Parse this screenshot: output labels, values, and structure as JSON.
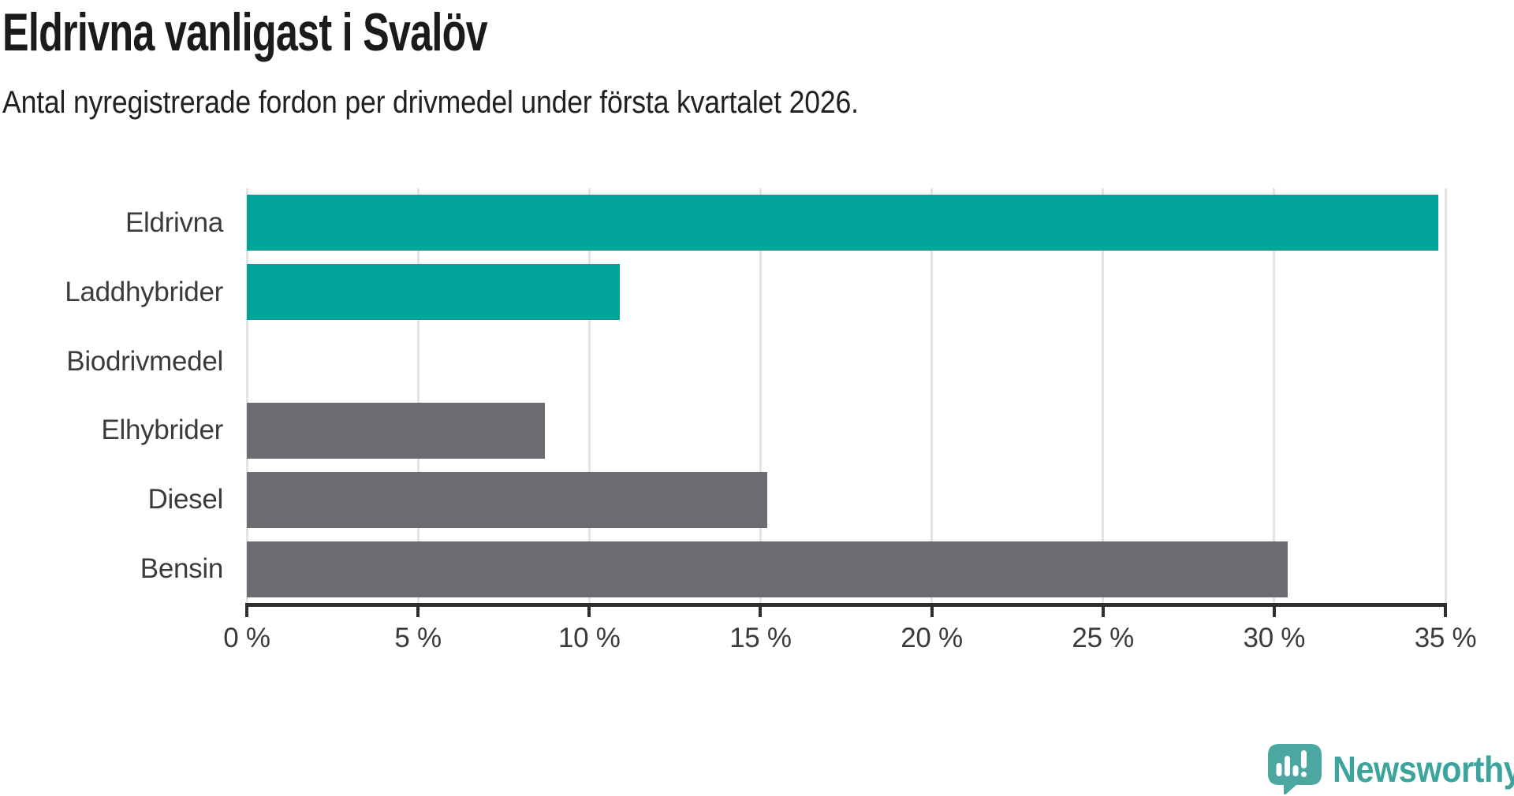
{
  "title": "Eldrivna vanligast i Svalöv",
  "subtitle": "Antal nyregistrerade fordon per drivmedel under första kvartalet 2026.",
  "chart_data": {
    "type": "bar",
    "orientation": "horizontal",
    "title": "Eldrivna vanligast i Svalöv",
    "subtitle": "Antal nyregistrerade fordon per drivmedel under första kvartalet 2026.",
    "categories": [
      "Eldrivna",
      "Laddhybrider",
      "Biodrivmedel",
      "Elhybrider",
      "Diesel",
      "Bensin"
    ],
    "values": [
      34.8,
      10.9,
      0,
      8.7,
      15.2,
      30.4
    ],
    "unit": "%",
    "xlim": [
      0,
      35
    ],
    "x_ticks": [
      0,
      5,
      10,
      15,
      20,
      25,
      30,
      35
    ],
    "x_tick_labels": [
      "0 %",
      "5 %",
      "10 %",
      "15 %",
      "20 %",
      "25 %",
      "30 %",
      "35 %"
    ],
    "bar_colors": [
      "#00a29a",
      "#00a29a",
      "#00a29a",
      "#6b6b71",
      "#6b6b71",
      "#6b6b71"
    ],
    "grid": true,
    "legend": "none",
    "xlabel": "",
    "ylabel": ""
  },
  "colors": {
    "highlight_teal": "#00a29a",
    "neutral_gray": "#6b6b71",
    "gridline": "#e4e4e4",
    "axis": "#2e2e2e",
    "label_text": "#3b3b3b",
    "logo_bubble": "#4ba7a0",
    "logo_text": "#3da49d"
  },
  "branding": {
    "name": "Newsworthy",
    "icon": "newsworthy-speech-bubble-barchart-icon"
  }
}
